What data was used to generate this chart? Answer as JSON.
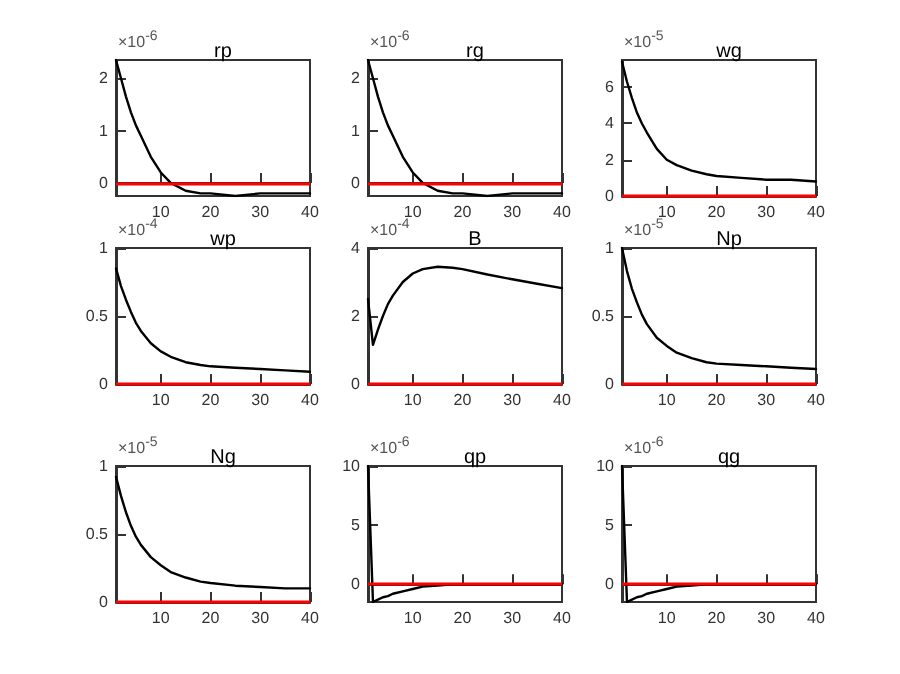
{
  "chart_data": [
    {
      "type": "line",
      "title": "rp",
      "annotations": [
        "×10$^{-6}$"
      ],
      "x": [
        1,
        2,
        3,
        4,
        5,
        6,
        8,
        10,
        12,
        15,
        18,
        20,
        25,
        30,
        35,
        40
      ],
      "series": [
        {
          "color": "#000000",
          "values": [
            2.35,
            2.0,
            1.65,
            1.35,
            1.1,
            0.9,
            0.5,
            0.2,
            0.0,
            -0.15,
            -0.2,
            -0.2,
            -0.25,
            -0.2,
            -0.2,
            -0.2
          ]
        }
      ],
      "xlim": [
        1,
        40
      ],
      "xticks": [
        10,
        20,
        30,
        40
      ],
      "ylim": [
        -0.25,
        2.35
      ],
      "yticks": [
        0,
        1,
        2
      ],
      "ref_lines": [
        {
          "axis": "y",
          "value": 0,
          "color": "#ff0000"
        }
      ]
    },
    {
      "type": "line",
      "title": "rg",
      "annotations": [
        "×10$^{-6}$"
      ],
      "x": [
        1,
        2,
        3,
        4,
        5,
        6,
        8,
        10,
        12,
        15,
        18,
        20,
        25,
        30,
        35,
        40
      ],
      "series": [
        {
          "color": "#000000",
          "values": [
            2.35,
            2.0,
            1.65,
            1.35,
            1.1,
            0.9,
            0.5,
            0.2,
            0.0,
            -0.15,
            -0.2,
            -0.2,
            -0.25,
            -0.2,
            -0.2,
            -0.2
          ]
        }
      ],
      "xlim": [
        1,
        40
      ],
      "xticks": [
        10,
        20,
        30,
        40
      ],
      "ylim": [
        -0.25,
        2.35
      ],
      "yticks": [
        0,
        1,
        2
      ],
      "ref_lines": [
        {
          "axis": "y",
          "value": 0,
          "color": "#ff0000"
        }
      ]
    },
    {
      "type": "line",
      "title": "wg",
      "annotations": [
        "×10$^{-5}$"
      ],
      "x": [
        1,
        2,
        3,
        4,
        5,
        6,
        8,
        10,
        12,
        15,
        18,
        20,
        25,
        30,
        35,
        40
      ],
      "series": [
        {
          "color": "#000000",
          "values": [
            7.4,
            6.3,
            5.4,
            4.6,
            4.0,
            3.5,
            2.6,
            2.0,
            1.7,
            1.4,
            1.2,
            1.1,
            1.0,
            0.9,
            0.9,
            0.8
          ]
        }
      ],
      "xlim": [
        1,
        40
      ],
      "xticks": [
        10,
        20,
        30,
        40
      ],
      "ylim": [
        0,
        7.5
      ],
      "yticks": [
        0,
        2,
        4,
        6
      ],
      "ref_lines": [
        {
          "axis": "y",
          "value": 0,
          "color": "#ff0000"
        }
      ]
    },
    {
      "type": "line",
      "title": "wp",
      "annotations": [
        "×10$^{-4}$"
      ],
      "x": [
        1,
        2,
        3,
        4,
        5,
        6,
        8,
        10,
        12,
        15,
        18,
        20,
        25,
        30,
        35,
        40
      ],
      "series": [
        {
          "color": "#000000",
          "values": [
            0.85,
            0.72,
            0.62,
            0.53,
            0.45,
            0.39,
            0.3,
            0.24,
            0.2,
            0.16,
            0.14,
            0.13,
            0.12,
            0.11,
            0.1,
            0.09
          ]
        }
      ],
      "xlim": [
        1,
        40
      ],
      "xticks": [
        10,
        20,
        30,
        40
      ],
      "ylim": [
        0,
        1
      ],
      "yticks": [
        0,
        0.5,
        1
      ],
      "ref_lines": [
        {
          "axis": "y",
          "value": 0,
          "color": "#ff0000"
        }
      ]
    },
    {
      "type": "line",
      "title": "B",
      "annotations": [
        "×10$^{-4}$"
      ],
      "x": [
        1,
        2,
        3,
        4,
        5,
        6,
        8,
        10,
        12,
        15,
        18,
        20,
        25,
        30,
        35,
        40
      ],
      "series": [
        {
          "color": "#000000",
          "values": [
            2.5,
            1.15,
            1.6,
            2.0,
            2.35,
            2.6,
            3.0,
            3.25,
            3.38,
            3.45,
            3.42,
            3.38,
            3.22,
            3.08,
            2.95,
            2.82
          ]
        }
      ],
      "xlim": [
        1,
        40
      ],
      "xticks": [
        10,
        20,
        30,
        40
      ],
      "ylim": [
        0,
        4
      ],
      "yticks": [
        0,
        2,
        4
      ],
      "ref_lines": [
        {
          "axis": "y",
          "value": 0,
          "color": "#ff0000"
        }
      ]
    },
    {
      "type": "line",
      "title": "Np",
      "annotations": [
        "×10$^{-5}$"
      ],
      "x": [
        1,
        2,
        3,
        4,
        5,
        6,
        8,
        10,
        12,
        15,
        18,
        20,
        25,
        30,
        35,
        40
      ],
      "series": [
        {
          "color": "#000000",
          "values": [
            1.0,
            0.83,
            0.7,
            0.6,
            0.51,
            0.44,
            0.34,
            0.28,
            0.23,
            0.19,
            0.16,
            0.15,
            0.14,
            0.13,
            0.12,
            0.11
          ]
        }
      ],
      "xlim": [
        1,
        40
      ],
      "xticks": [
        10,
        20,
        30,
        40
      ],
      "ylim": [
        0,
        1
      ],
      "yticks": [
        0,
        0.5,
        1
      ],
      "ref_lines": [
        {
          "axis": "y",
          "value": 0,
          "color": "#ff0000"
        }
      ]
    },
    {
      "type": "line",
      "title": "Ng",
      "annotations": [
        "×10$^{-5}$"
      ],
      "x": [
        1,
        2,
        3,
        4,
        5,
        6,
        8,
        10,
        12,
        15,
        18,
        20,
        25,
        30,
        35,
        40
      ],
      "series": [
        {
          "color": "#000000",
          "values": [
            0.92,
            0.78,
            0.66,
            0.56,
            0.48,
            0.42,
            0.33,
            0.27,
            0.22,
            0.18,
            0.15,
            0.14,
            0.12,
            0.11,
            0.1,
            0.1
          ]
        }
      ],
      "xlim": [
        1,
        40
      ],
      "xticks": [
        10,
        20,
        30,
        40
      ],
      "ylim": [
        0,
        1
      ],
      "yticks": [
        0,
        0.5,
        1
      ],
      "ref_lines": [
        {
          "axis": "y",
          "value": 0,
          "color": "#ff0000"
        }
      ]
    },
    {
      "type": "line",
      "title": "qp",
      "annotations": [
        "×10$^{-6}$"
      ],
      "x": [
        1,
        2,
        3,
        4,
        5,
        6,
        8,
        10,
        12,
        15,
        18,
        20,
        25,
        30,
        35,
        40
      ],
      "series": [
        {
          "color": "#000000",
          "values": [
            10,
            -1.5,
            -1.3,
            -1.1,
            -1.0,
            -0.8,
            -0.6,
            -0.4,
            -0.2,
            -0.1,
            0,
            0,
            0,
            0,
            0,
            0
          ]
        }
      ],
      "xlim": [
        1,
        40
      ],
      "xticks": [
        10,
        20,
        30,
        40
      ],
      "ylim": [
        -1.5,
        10
      ],
      "yticks": [
        0,
        5,
        10
      ],
      "ref_lines": [
        {
          "axis": "y",
          "value": 0,
          "color": "#ff0000"
        }
      ]
    },
    {
      "type": "line",
      "title": "qg",
      "annotations": [
        "×10$^{-6}$"
      ],
      "x": [
        1,
        2,
        3,
        4,
        5,
        6,
        8,
        10,
        12,
        15,
        18,
        20,
        25,
        30,
        35,
        40
      ],
      "series": [
        {
          "color": "#000000",
          "values": [
            10,
            -1.5,
            -1.3,
            -1.1,
            -1.0,
            -0.8,
            -0.6,
            -0.4,
            -0.2,
            -0.1,
            0,
            0,
            0,
            0,
            0,
            0
          ]
        }
      ],
      "xlim": [
        1,
        40
      ],
      "xticks": [
        10,
        20,
        30,
        40
      ],
      "ylim": [
        -1.5,
        10
      ],
      "yticks": [
        0,
        5,
        10
      ],
      "ref_lines": [
        {
          "axis": "y",
          "value": 0,
          "color": "#ff0000"
        }
      ]
    }
  ]
}
